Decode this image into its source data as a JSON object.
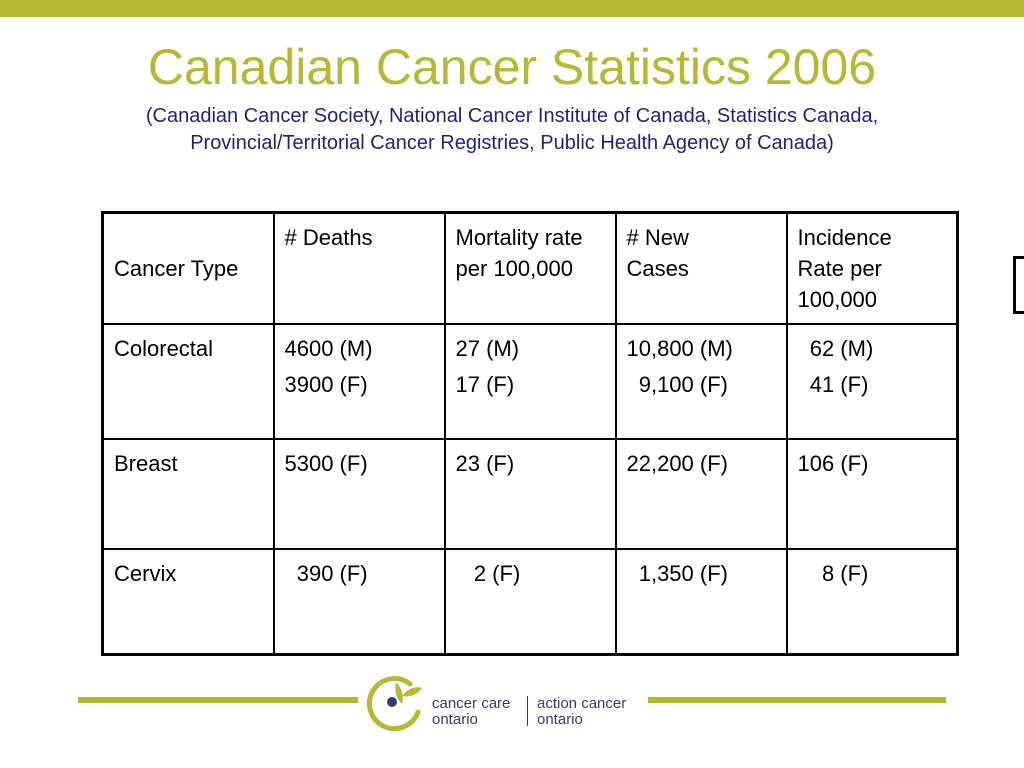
{
  "title": "Canadian Cancer Statistics 2006",
  "subtitle_line1": "(Canadian Cancer Society, National Cancer Institute of Canada, Statistics Canada,",
  "subtitle_line2": "Provincial/Territorial Cancer Registries, Public Health Agency of Canada)",
  "table": {
    "headers": [
      "Cancer Type",
      "# Deaths",
      "Mortality rate\nper 100,000",
      "# New\nCases",
      "Incidence\nRate per\n100,000"
    ],
    "rows": [
      {
        "type": "Colorectal",
        "deaths": [
          "4600 (M)",
          "3900 (F)"
        ],
        "mortality": [
          "27 (M)",
          "17 (F)"
        ],
        "new_cases": [
          "10,800 (M)",
          "  9,100 (F)"
        ],
        "incidence": [
          "  62 (M)",
          "  41 (F)"
        ]
      },
      {
        "type": "Breast",
        "deaths": [
          "5300 (F)"
        ],
        "mortality": [
          "23 (F)"
        ],
        "new_cases": [
          "22,200 (F)"
        ],
        "incidence": [
          "106 (F)"
        ]
      },
      {
        "type": "Cervix",
        "deaths": [
          "  390 (F)"
        ],
        "mortality": [
          "   2 (F)"
        ],
        "new_cases": [
          "  1,350 (F)"
        ],
        "incidence": [
          "    8 (F)"
        ]
      }
    ]
  },
  "logo": {
    "left_line1": "cancer care",
    "left_line2": "ontario",
    "right_line1": "action cancer",
    "right_line2": "ontario"
  },
  "colors": {
    "accent": "#b5b830",
    "subtitle": "#1f1f8a"
  }
}
